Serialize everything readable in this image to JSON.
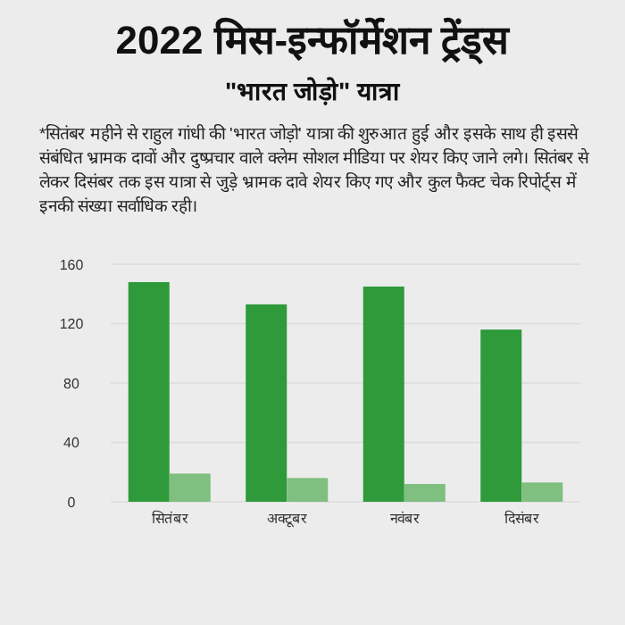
{
  "chart_data": {
    "type": "bar",
    "title": "2022 मिस-इन्फॉर्मेशन ट्रेंड्स",
    "subtitle": "\"भारत जोड़ो\" यात्रा",
    "annotations": [
      "*सितंबर महीने से राहुल गांधी की 'भारत जोड़ो' यात्रा की शुरुआत हुई और इसके साथ ही इससे संबंधित भ्रामक दावों और दुष्प्रचार वाले क्लेम सोशल मीडिया पर शेयर किए जाने लगे। सितंबर से लेकर दिसंबर तक इस यात्रा से जुड़े भ्रामक दावे शेयर किए गए और कुल फैक्ट चेक रिपोर्ट्स में इनकी संख्या सर्वाधिक रही।"
    ],
    "categories": [
      "सितंबर",
      "अक्टूबर",
      "नवंबर",
      "दिसंबर"
    ],
    "series": [
      {
        "color": "#2e9a3a",
        "values": [
          148,
          133,
          145,
          116
        ]
      },
      {
        "color": "#7fbf7f",
        "values": [
          19,
          16,
          12,
          13
        ]
      }
    ],
    "ylim": [
      0,
      160
    ],
    "yticks": [
      0,
      40,
      80,
      120,
      160
    ],
    "grid": "y"
  }
}
